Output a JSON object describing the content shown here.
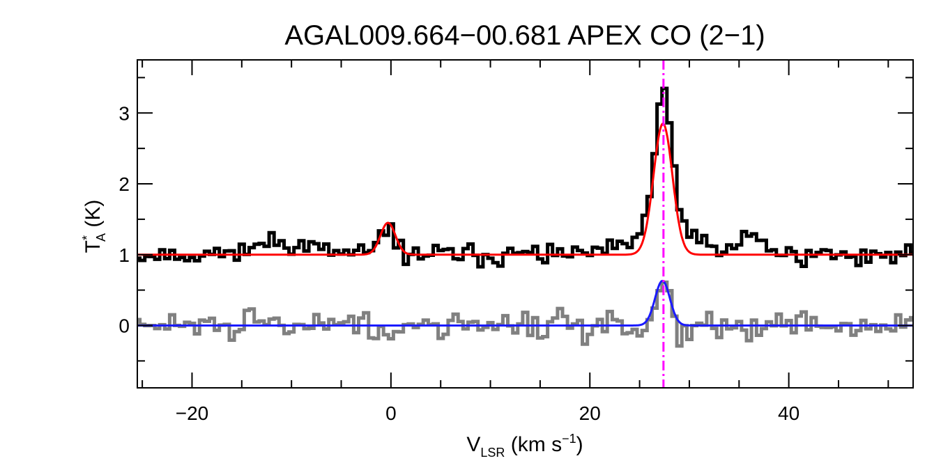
{
  "chart_data": {
    "type": "line",
    "title": "AGAL009.664−00.681   APEX CO (2−1)",
    "xlabel": {
      "main": "V",
      "sub": "LSR",
      "rest": " (km s",
      "sup": "−1",
      "end": ")"
    },
    "ylabel": {
      "main": "T",
      "sup": "*",
      "sub": "A",
      "rest": " (K)"
    },
    "xlim": [
      -25.5,
      52.5
    ],
    "ylim": [
      -0.88,
      3.75
    ],
    "x_ticks": [
      -20,
      0,
      20,
      40
    ],
    "x_tick_labels": [
      "−20",
      "0",
      "20",
      "40"
    ],
    "x_minor_step": 5,
    "y_ticks": [
      0,
      1,
      2,
      3
    ],
    "y_tick_labels": [
      "0",
      "1",
      "2",
      "3"
    ],
    "y_minor_step": 0.5,
    "grid": false,
    "vline": {
      "x": 27.4,
      "color": "#ff00ff",
      "style": "dash-dot"
    },
    "series": [
      {
        "role": "observed spectrum (offset +1)",
        "color": "#000000",
        "style": "step",
        "step_kms": 0.5,
        "offset": 1.0,
        "noise_sigma": 0.07,
        "noise_seed": 11,
        "components": [
          {
            "amp": 0.4,
            "center": -0.3,
            "sigma": 0.7
          },
          {
            "amp": 0.18,
            "center": -11.0,
            "sigma": 2.8
          },
          {
            "amp": 1.8,
            "center": 27.4,
            "sigma": 0.85
          },
          {
            "amp": 0.45,
            "center": 27.6,
            "sigma": 2.6
          },
          {
            "amp": 0.28,
            "center": 36.3,
            "sigma": 1.2
          }
        ]
      },
      {
        "role": "observed spectrum (second line)",
        "color": "#808080",
        "style": "step",
        "step_kms": 0.5,
        "offset": 0.0,
        "noise_sigma": 0.1,
        "noise_seed": 29,
        "components": [
          {
            "amp": 0.72,
            "center": 27.3,
            "sigma": 0.6
          }
        ]
      },
      {
        "role": "gaussian fit",
        "color": "#ff0000",
        "style": "line",
        "offset": 1.0,
        "components": [
          {
            "amp": 0.45,
            "center": -0.3,
            "sigma": 0.75
          },
          {
            "amp": 1.85,
            "center": 27.35,
            "sigma": 0.95
          }
        ]
      },
      {
        "role": "gaussian fit",
        "color": "#1a1aff",
        "style": "line",
        "offset": 0.0,
        "components": [
          {
            "amp": 0.63,
            "center": 27.3,
            "sigma": 0.75
          }
        ]
      }
    ]
  }
}
